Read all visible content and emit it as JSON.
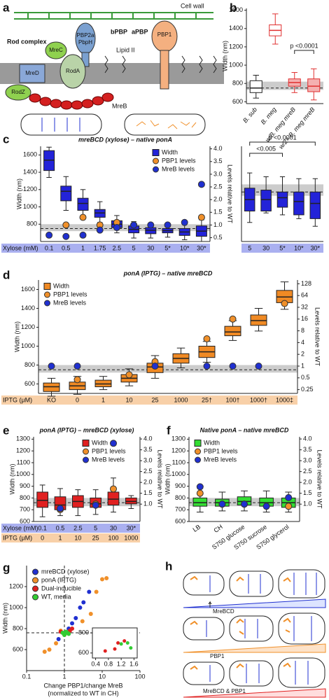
{
  "chart_data": [
    {
      "panel": "b",
      "type": "box",
      "ylabel": "Width (nm)",
      "categories": [
        "B. sub",
        "B. meg",
        "w/B. meg mreB",
        "w/2× B. meg mreB"
      ],
      "ylim": [
        580,
        1620
      ],
      "yticks": [
        600,
        800,
        1000,
        1200,
        1400,
        1600
      ],
      "reference_band": [
        730,
        820
      ],
      "reference_line": 750,
      "annotations": [
        "p <0.0001"
      ],
      "series": [
        {
          "edge_colors": [
            "#222222",
            "#e03030",
            "#e03030",
            "#e03030"
          ],
          "fill_colors": [
            "#ffffff",
            "#ffffff",
            "#f4b0b0",
            "#f4b0b0"
          ],
          "whislo": [
            640,
            1230,
            700,
            620
          ],
          "q1": [
            700,
            1320,
            770,
            710
          ],
          "median": [
            750,
            1380,
            810,
            770
          ],
          "q3": [
            830,
            1440,
            850,
            850
          ],
          "whishi": [
            890,
            1560,
            920,
            960
          ]
        }
      ]
    },
    {
      "panel": "c",
      "type": "box",
      "title": "mreBCD (xylose) – native ponA",
      "ylabel": "Width (nm)",
      "y2label": "Levels relative to WT",
      "category_rows": [
        {
          "label": "Xylose (mM)",
          "color": "#aab0f0",
          "categories": [
            "0.1",
            "0.5",
            "1",
            "1.75",
            "2.5",
            "5",
            "30",
            "5*",
            "10*",
            "30*"
          ]
        }
      ],
      "ylim": [
        600,
        1700
      ],
      "yticks": [
        800,
        1000,
        1200,
        1400,
        1600
      ],
      "y2lim": [
        0.35,
        4.1
      ],
      "y2ticks": [
        0.5,
        {
          "value": 1,
          "label": "1.0"
        },
        1.5,
        {
          "value": 2,
          "label": "2.0"
        },
        2.5,
        {
          "value": 3,
          "label": "3.0"
        },
        3.5,
        {
          "value": 4,
          "label": "4.0"
        }
      ],
      "reference_band": [
        720,
        800
      ],
      "reference_line": 750,
      "legend": "upper right",
      "series": [
        {
          "name": "Width",
          "color": "#2323d8",
          "whislo": [
            1340,
            960,
            900,
            820,
            700,
            640,
            640,
            650,
            620,
            600
          ],
          "q1": [
            1420,
            1070,
            960,
            880,
            760,
            700,
            690,
            700,
            670,
            660
          ],
          "median": [
            1540,
            1180,
            1040,
            930,
            800,
            740,
            730,
            725,
            710,
            720
          ],
          "q3": [
            1650,
            1240,
            1100,
            970,
            840,
            780,
            760,
            750,
            750,
            780
          ],
          "whishi": [
            1690,
            1350,
            1200,
            1060,
            900,
            830,
            800,
            800,
            820,
            850
          ]
        },
        {
          "name": "PBP1 levels",
          "color": "#f0902a",
          "axis": "y2",
          "values": [
            null,
            1.0,
            1.3,
            1.0,
            1.1,
            1.0,
            null,
            null,
            null,
            1.3
          ]
        },
        {
          "name": "MreB levels",
          "color": "#2030d0",
          "axis": "y2",
          "values": [
            0.6,
            0.55,
            0.6,
            0.8,
            0.9,
            1.0,
            1.0,
            1.0,
            1.1,
            2.6
          ]
        }
      ]
    },
    {
      "type": "box",
      "category_rows": [
        {
          "color": "#aab0f0",
          "categories": [
            "5",
            "30",
            "5*",
            "10*",
            "30*"
          ]
        }
      ],
      "ylim": [
        500,
        1000
      ],
      "reference_band": [
        740,
        800
      ],
      "reference_line": 760,
      "annotations": [
        "p <0.0001",
        "<0.005"
      ],
      "series": [
        {
          "color": "#2323d8",
          "whislo": [
            600,
            650,
            640,
            620,
            580
          ],
          "q1": [
            660,
            660,
            680,
            640,
            620
          ],
          "median": [
            720,
            720,
            730,
            710,
            700
          ],
          "q3": [
            780,
            770,
            760,
            760,
            760
          ],
          "whishi": [
            860,
            840,
            840,
            830,
            830
          ]
        }
      ]
    },
    {
      "panel": "d",
      "type": "box",
      "title": "ponA (IPTG) – native mreBCD",
      "ylabel": "Width (nm)",
      "y2label": "Levels relative to WT",
      "category_rows": [
        {
          "label": "IPTG (μM)",
          "color": "#f8d0a8",
          "categories": [
            "KO",
            "0",
            "1",
            "10",
            "25",
            "1000",
            "25†",
            "100†",
            "1000†",
            "1000‡"
          ]
        }
      ],
      "ylim": [
        500,
        1700
      ],
      "yticks": [
        600,
        800,
        1000,
        1200,
        1400,
        1600
      ],
      "y2lim": [
        0.2,
        160
      ],
      "y2scale": "log",
      "y2ticks": [
        0.25,
        0.5,
        1,
        2,
        4,
        8,
        16,
        32,
        64,
        128
      ],
      "reference_band": [
        720,
        800
      ],
      "reference_line": 750,
      "legend": "upper left",
      "series": [
        {
          "name": "Width",
          "color": "#f08a24",
          "whislo": [
            470,
            490,
            540,
            580,
            660,
            770,
            830,
            1060,
            1160,
            1390
          ],
          "q1": [
            520,
            540,
            570,
            620,
            720,
            820,
            880,
            1110,
            1220,
            1460
          ],
          "median": [
            570,
            580,
            600,
            660,
            780,
            870,
            940,
            1150,
            1270,
            1520
          ],
          "q3": [
            610,
            620,
            640,
            700,
            820,
            920,
            1000,
            1210,
            1330,
            1590
          ],
          "whishi": [
            660,
            680,
            680,
            760,
            900,
            980,
            1050,
            1270,
            1400,
            1680
          ]
        },
        {
          "name": "PBP1 levels",
          "color": "#f0902a",
          "axis": "y2",
          "values": [
            null,
            0.45,
            null,
            0.6,
            1.3,
            null,
            5,
            16,
            null,
            40
          ]
        },
        {
          "name": "MreB levels",
          "color": "#2030d0",
          "axis": "y2",
          "values": [
            1.0,
            1.0,
            null,
            null,
            1.0,
            null,
            1.0,
            1.0,
            1.0,
            null
          ]
        }
      ]
    },
    {
      "panel": "e",
      "type": "box",
      "title": "ponA (IPTG) – mreBCD (xylose)",
      "ylabel": "Width (nm)",
      "y2label": "Levels relative to WT",
      "category_rows": [
        {
          "label": "Xylose (mM)",
          "color": "#aab0f0",
          "categories": [
            "0.1",
            "0.5",
            "2.5",
            "5",
            "30",
            "30*"
          ]
        },
        {
          "label": "IPTG (μM)",
          "color": "#f8d0a8",
          "categories": [
            "0",
            "1",
            "10",
            "25",
            "100",
            "1000"
          ]
        }
      ],
      "ylim": [
        600,
        1320
      ],
      "yticks": [
        600,
        700,
        800,
        900,
        1000,
        1100,
        1200,
        1300
      ],
      "y2lim": [
        0.2,
        4.1
      ],
      "y2ticks": [
        {
          "value": 1,
          "label": "1.0"
        },
        1.5,
        {
          "value": 2,
          "label": "2.0"
        },
        2.5,
        {
          "value": 3,
          "label": "3.0"
        },
        3.5,
        {
          "value": 4,
          "label": "4.0"
        }
      ],
      "reference_band": [
        730,
        800
      ],
      "reference_line": 760,
      "legend": "upper right",
      "series": [
        {
          "name": "Width",
          "color": "#e02020",
          "whislo": [
            640,
            650,
            650,
            660,
            680,
            710
          ],
          "q1": [
            720,
            700,
            720,
            720,
            740,
            750
          ],
          "median": [
            780,
            740,
            770,
            750,
            790,
            770
          ],
          "q3": [
            850,
            810,
            820,
            800,
            850,
            800
          ],
          "whishi": [
            910,
            880,
            870,
            870,
            970,
            820
          ]
        },
        {
          "name": "PBP1 levels",
          "color": "#f0902a",
          "axis": "y2",
          "values": [
            null,
            0.75,
            null,
            1.0,
            1.7,
            null
          ]
        },
        {
          "name": "MreB levels",
          "color": "#2030d0",
          "axis": "y2",
          "values": [
            null,
            0.8,
            null,
            0.95,
            3.8,
            null
          ]
        }
      ]
    },
    {
      "panel": "f",
      "type": "box",
      "title": "Native ponA – native mreBCD",
      "ylabel": "Width (nm)",
      "y2label": "Levels relative to WT",
      "categories": [
        "LB",
        "CH",
        "S750 glucose",
        "S750 sucrose",
        "S750 glycerol"
      ],
      "ylim": [
        600,
        1320
      ],
      "yticks": [
        600,
        700,
        800,
        900,
        1000,
        1100,
        1200,
        1300
      ],
      "y2lim": [
        0.2,
        4.1
      ],
      "y2ticks": [
        {
          "value": 1,
          "label": "1.0"
        },
        1.5,
        {
          "value": 2,
          "label": "2.0"
        },
        2.5,
        {
          "value": 3,
          "label": "3.0"
        },
        3.5,
        {
          "value": 4,
          "label": "4.0"
        }
      ],
      "reference_band": [
        730,
        800
      ],
      "reference_line": 760,
      "legend": "upper left",
      "series": [
        {
          "name": "Width",
          "color": "#33dd33",
          "whislo": [
            680,
            690,
            690,
            680,
            680
          ],
          "q1": [
            730,
            730,
            740,
            730,
            720
          ],
          "median": [
            760,
            760,
            770,
            760,
            760
          ],
          "q3": [
            800,
            790,
            810,
            800,
            800
          ],
          "whishi": [
            900,
            850,
            860,
            860,
            850
          ]
        },
        {
          "name": "PBP1 levels",
          "color": "#f0902a",
          "axis": "y2",
          "values": [
            1.5,
            1.0,
            1.0,
            null,
            0.9
          ]
        },
        {
          "name": "MreB levels",
          "color": "#2030d0",
          "axis": "y2",
          "values": [
            1.8,
            1.0,
            1.0,
            0.9,
            1.3
          ]
        }
      ]
    },
    {
      "panel": "g",
      "type": "scatter",
      "xlabel": [
        "Change PBP1/change MreB",
        "(normalized to WT in CH)"
      ],
      "ylabel": "Width (nm)",
      "xscale": "log",
      "xlim": [
        0.1,
        100
      ],
      "xticks": [
        0.1,
        1,
        10,
        100
      ],
      "ylim": [
        400,
        1400
      ],
      "yticks": [
        600,
        800,
        1000,
        1200
      ],
      "reference_x": 1,
      "reference_y": 760,
      "legend": "upper left",
      "series": [
        {
          "name": "mreBCD (xylose)",
          "color": "#2030d0",
          "x": [
            1.0,
            1.3,
            1.6,
            2.0,
            2.6,
            3.2,
            4.5,
            0.7
          ],
          "values": [
            760,
            800,
            850,
            900,
            1000,
            1050,
            1150,
            700
          ]
        },
        {
          "name": "ponA (IPTG)",
          "color": "#f0902a",
          "x": [
            0.3,
            0.4,
            0.6,
            0.8,
            3,
            5,
            7,
            10,
            13
          ],
          "values": [
            580,
            600,
            660,
            780,
            870,
            940,
            1150,
            1270,
            1280
          ]
        },
        {
          "name": "Dual-inducible",
          "color": "#e02020",
          "x": [
            0.8,
            1.0,
            1.2,
            1.4,
            1.6
          ],
          "values": [
            770,
            740,
            760,
            780,
            800
          ]
        },
        {
          "name": "WT, media",
          "color": "#33cc33",
          "x": [
            0.9,
            1.0,
            1.1,
            1.2,
            1.3
          ],
          "values": [
            760,
            740,
            770,
            760,
            750
          ]
        }
      ]
    },
    {
      "type": "scatter",
      "xlim": [
        0.3,
        1.7
      ],
      "xticks": [
        0.4,
        0.8,
        1.2,
        1.6
      ],
      "ylim": [
        550,
        850
      ],
      "yticks": [
        600,
        800
      ],
      "series": [
        {
          "color": "#e02020",
          "x": [
            0.7,
            1.0,
            1.1,
            1.3
          ],
          "values": [
            620,
            640,
            700,
            720
          ]
        },
        {
          "color": "#33cc33",
          "x": [
            1.2,
            1.4,
            1.5
          ],
          "values": [
            690,
            700,
            650
          ]
        }
      ]
    }
  ],
  "diagrams": [
    {
      "panel": "a",
      "labels": [
        "Cell wall",
        "Rod complex",
        "bPBP",
        "aPBP",
        "PBP2a",
        "PbpH",
        "PBP1",
        "MreC",
        "MreD",
        "RodA",
        "RodZ",
        "Lipid II",
        "MreB"
      ]
    },
    {
      "panel": "h",
      "labels": [
        "MreBCD",
        "PBP1",
        "MreBCD & PBP1"
      ]
    }
  ]
}
